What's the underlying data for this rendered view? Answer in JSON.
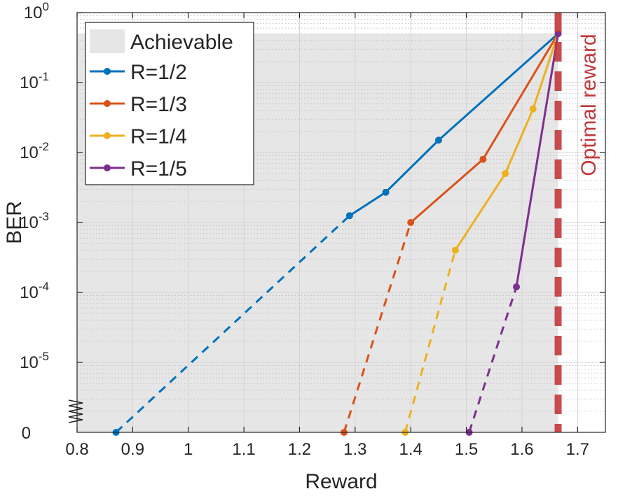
{
  "chart_data": {
    "type": "line",
    "xlabel": "Reward",
    "ylabel": "BER",
    "xlim": [
      0.8,
      1.75
    ],
    "y_scale": "log-with-zero-break",
    "ylim": [
      1e-06,
      1
    ],
    "x_ticks": [
      0.8,
      0.9,
      1.0,
      1.1,
      1.2,
      1.3,
      1.4,
      1.5,
      1.6,
      1.7
    ],
    "x_tick_labels": [
      "0.8",
      "0.9",
      "1",
      "1.1",
      "1.2",
      "1.3",
      "1.4",
      "1.5",
      "1.6",
      "1.7"
    ],
    "y_ticks": [
      {
        "exp": 0,
        "base": "10",
        "sup": "0"
      },
      {
        "exp": -1,
        "base": "10",
        "sup": "-1"
      },
      {
        "exp": -2,
        "base": "10",
        "sup": "-2"
      },
      {
        "exp": -3,
        "base": "10",
        "sup": "-3"
      },
      {
        "exp": -4,
        "base": "10",
        "sup": "-4"
      },
      {
        "exp": -5,
        "base": "10",
        "sup": "-5"
      }
    ],
    "y_zero_label": "0",
    "grid": true,
    "legend_position": "top-left",
    "achievable_region": {
      "label": "Achievable",
      "color": "#e6e6e6",
      "x_max": 1.665,
      "y_max": 0.5
    },
    "optimal_reward": {
      "x": 1.665,
      "label": "Optimal reward",
      "color": "#c0393b"
    },
    "series": [
      {
        "name": "R=1/2",
        "color": "#0072BD",
        "solid": [
          [
            1.29,
            0.00125
          ],
          [
            1.355,
            0.0027
          ],
          [
            1.45,
            0.015
          ],
          [
            1.665,
            0.5
          ]
        ],
        "dashed_to_zero": [
          0.87,
          1.29
        ]
      },
      {
        "name": "R=1/3",
        "color": "#D95319",
        "solid": [
          [
            1.4,
            0.001
          ],
          [
            1.53,
            0.008
          ],
          [
            1.665,
            0.5
          ]
        ],
        "dashed_to_zero": [
          1.28,
          1.4
        ]
      },
      {
        "name": "R=1/4",
        "color": "#EDB120",
        "solid": [
          [
            1.48,
            0.0004
          ],
          [
            1.57,
            0.005
          ],
          [
            1.62,
            0.042
          ],
          [
            1.665,
            0.5
          ]
        ],
        "dashed_to_zero": [
          1.39,
          1.48
        ]
      },
      {
        "name": "R=1/5",
        "color": "#7E2F8E",
        "solid": [
          [
            1.59,
            0.00012
          ],
          [
            1.665,
            0.5
          ]
        ],
        "dashed_to_zero": [
          1.505,
          1.59
        ]
      }
    ]
  }
}
